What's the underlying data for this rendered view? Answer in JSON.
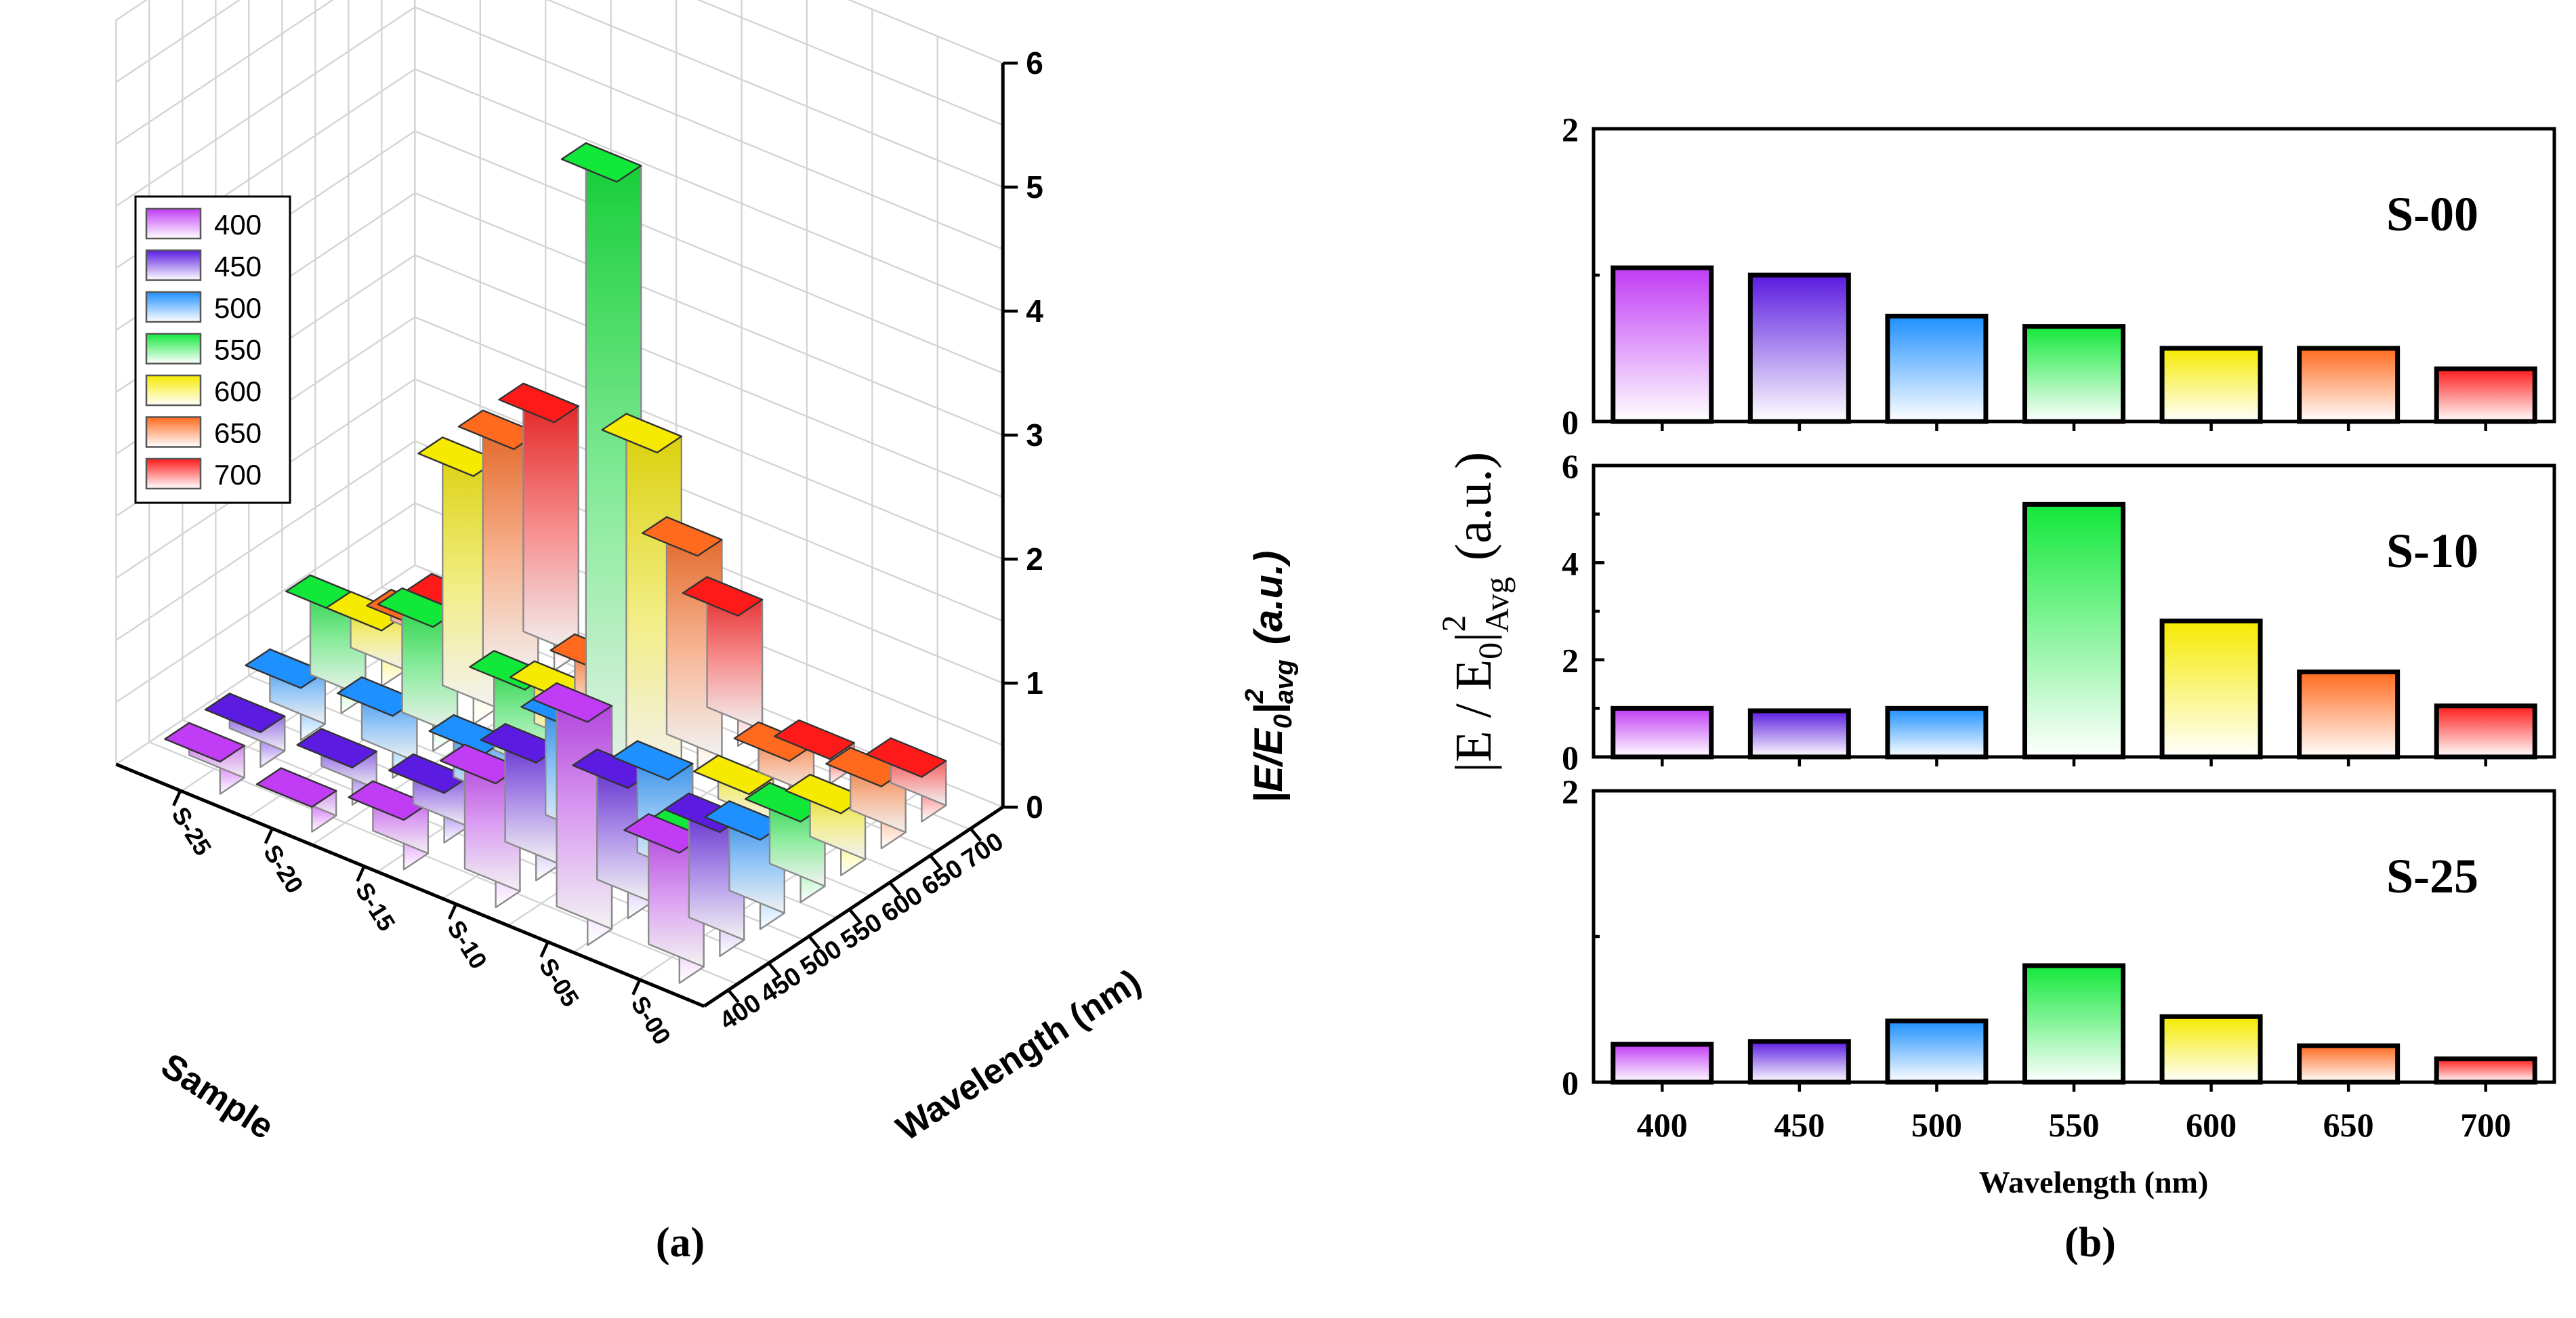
{
  "chart_data": [
    {
      "panel": "(a)",
      "type": "bar3d",
      "categories": [
        "400",
        "450",
        "500",
        "550",
        "600",
        "650",
        "700"
      ],
      "samples": [
        "S-00",
        "S-05",
        "S-10",
        "S-15",
        "S-20",
        "S-25"
      ],
      "series": [
        {
          "name": "S-00",
          "values": [
            1.05,
            1.0,
            0.72,
            0.65,
            0.5,
            0.5,
            0.36
          ]
        },
        {
          "name": "S-05",
          "values": [
            1.8,
            1.05,
            0.9,
            0.2,
            0.35,
            0.4,
            0.2
          ]
        },
        {
          "name": "S-10",
          "values": [
            1.0,
            0.95,
            1.0,
            5.2,
            2.8,
            1.75,
            1.05
          ]
        },
        {
          "name": "S-15",
          "values": [
            0.4,
            0.4,
            0.5,
            0.8,
            0.5,
            0.5,
            1.0
          ]
        },
        {
          "name": "S-20",
          "values": [
            0.2,
            0.3,
            0.5,
            1.0,
            2.0,
            2.0,
            2.0
          ]
        },
        {
          "name": "S-25",
          "values": [
            0.26,
            0.28,
            0.42,
            0.8,
            0.45,
            0.25,
            0.16
          ]
        }
      ],
      "zticks": [
        "0",
        "1",
        "2",
        "3",
        "4",
        "5",
        "6"
      ],
      "zlim": [
        0,
        6
      ],
      "xlabel": "Wavelength (nm)",
      "ylabel": "Sample",
      "zlabel": {
        "main": "|E/E",
        "sub": "0",
        "rest": "|",
        "sup": "2",
        "sub2": "avg",
        "unit": "(a.u.)"
      },
      "legend": [
        {
          "label": "400",
          "color": "#c13cf5"
        },
        {
          "label": "450",
          "color": "#5b1be0"
        },
        {
          "label": "500",
          "color": "#1e90ff"
        },
        {
          "label": "550",
          "color": "#12e83a"
        },
        {
          "label": "600",
          "color": "#f5ea00"
        },
        {
          "label": "650",
          "color": "#ff6a1e"
        },
        {
          "label": "700",
          "color": "#ff1a1a"
        }
      ],
      "panel_label": "(a)"
    },
    {
      "panel": "(b)",
      "type": "bar",
      "categories": [
        "400",
        "450",
        "500",
        "550",
        "600",
        "650",
        "700"
      ],
      "colors": [
        "#c13cf5",
        "#5b1be0",
        "#1e90ff",
        "#12e83a",
        "#f5ea00",
        "#ff6a1e",
        "#ff1a1a"
      ],
      "subplots": [
        {
          "name": "S-00",
          "values": [
            1.05,
            1.0,
            0.72,
            0.65,
            0.5,
            0.5,
            0.36
          ],
          "ylim": [
            0,
            2
          ],
          "yticks": [
            "0",
            "2"
          ]
        },
        {
          "name": "S-10",
          "values": [
            1.0,
            0.95,
            1.0,
            5.2,
            2.8,
            1.75,
            1.05
          ],
          "ylim": [
            0,
            6
          ],
          "yticks": [
            "0",
            "2",
            "4",
            "6"
          ]
        },
        {
          "name": "S-25",
          "values": [
            0.26,
            0.28,
            0.42,
            0.8,
            0.45,
            0.25,
            0.16
          ],
          "ylim": [
            0,
            2
          ],
          "yticks": [
            "0",
            "2"
          ]
        }
      ],
      "xlabel": "Wavelength (nm)",
      "ylabel": {
        "main": "|E / E",
        "sub": "0",
        "rest": "|",
        "sup": "2",
        "sub2": "Avg",
        "unit": "(a.u.)"
      },
      "panel_label": "(b)"
    }
  ]
}
